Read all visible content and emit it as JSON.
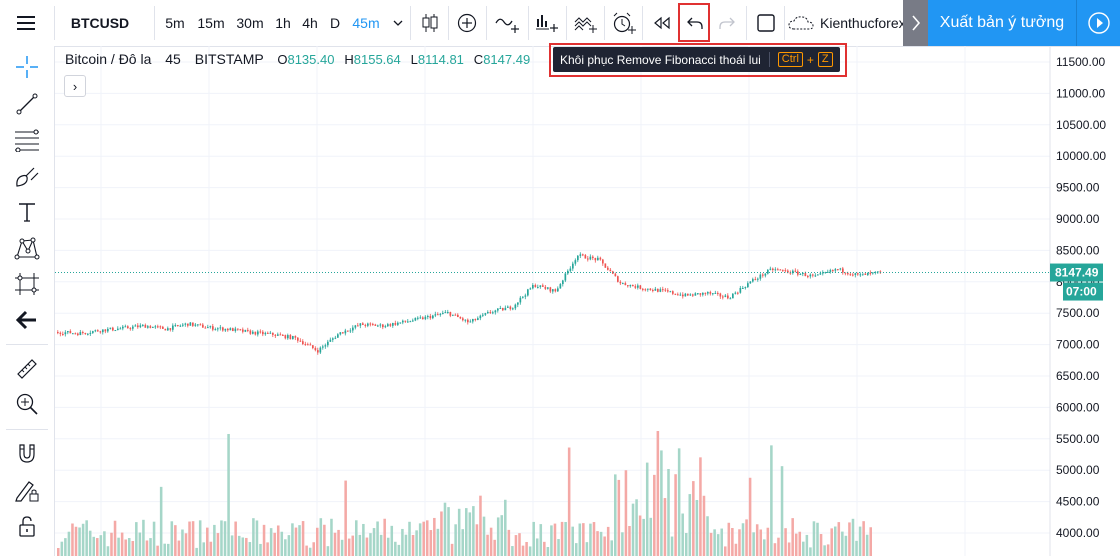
{
  "toolbar": {
    "symbol": "BTCUSD",
    "intervals": [
      "5m",
      "15m",
      "30m",
      "1h",
      "4h",
      "D",
      "45m"
    ],
    "active_interval": "45m",
    "layout_name": "Kienthucforex",
    "publish_label": "Xuất bản ý tưởng",
    "icons": [
      "menu-icon",
      "chevron-down-icon",
      "candles-icon",
      "plus-circle-icon",
      "compare-icon",
      "indicators-icon",
      "templates-icon",
      "alert-icon",
      "replay-icon",
      "undo-icon",
      "redo-icon",
      "fullscreen-icon",
      "cloud-icon",
      "chevron-right-icon",
      "play-icon"
    ]
  },
  "tooltip": {
    "text": "Khôi phục Remove Fibonacci thoái lui",
    "shortcut_ctrl": "Ctrl",
    "shortcut_plus": "+",
    "shortcut_key": "Z"
  },
  "left_tools": [
    "crosshair-icon",
    "trendline-icon",
    "fib-retracement-icon",
    "brush-icon",
    "text-icon",
    "pattern-icon",
    "prediction-icon",
    "back-arrow-icon",
    "ruler-icon",
    "zoom-in-icon",
    "magnet-icon",
    "lock-drawing-icon",
    "lock-icon"
  ],
  "legend": {
    "title": "Bitcoin / Đô la",
    "interval": "45",
    "exchange": "BITSTAMP",
    "o_label": "O",
    "o": "8135.40",
    "h_label": "H",
    "h": "8155.64",
    "l_label": "L",
    "l": "8114.81",
    "c_label": "C",
    "c": "8147.49"
  },
  "collapse_label": "›",
  "price_axis": {
    "last_price": "8147.49",
    "countdown": "07:00",
    "colors": {
      "up": "#26a69a",
      "down": "#ef5350",
      "label_bg": "#26a69a"
    }
  },
  "chart_data": {
    "type": "candlestick",
    "y_ticks": [
      "11500.00",
      "11000.00",
      "10500.00",
      "10000.00",
      "9500.00",
      "9000.00",
      "8500.00",
      "8000.00",
      "7500.00",
      "7000.00",
      "6500.00",
      "6000.00",
      "5500.00",
      "5000.00",
      "4500.00",
      "4000.00"
    ],
    "ylim": [
      3950,
      11700
    ],
    "last_price": 8147.49,
    "close_path": [
      7200,
      7180,
      7230,
      7260,
      7300,
      7250,
      7330,
      7270,
      7240,
      7190,
      7160,
      7100,
      6900,
      7180,
      7320,
      7300,
      7360,
      7430,
      7510,
      7350,
      7520,
      7600,
      7950,
      7850,
      8420,
      8350,
      7980,
      7900,
      7850,
      7780,
      7820,
      7750,
      8000,
      8200,
      8150,
      8080,
      8200,
      8100,
      8147
    ],
    "volume_bars": 230
  }
}
